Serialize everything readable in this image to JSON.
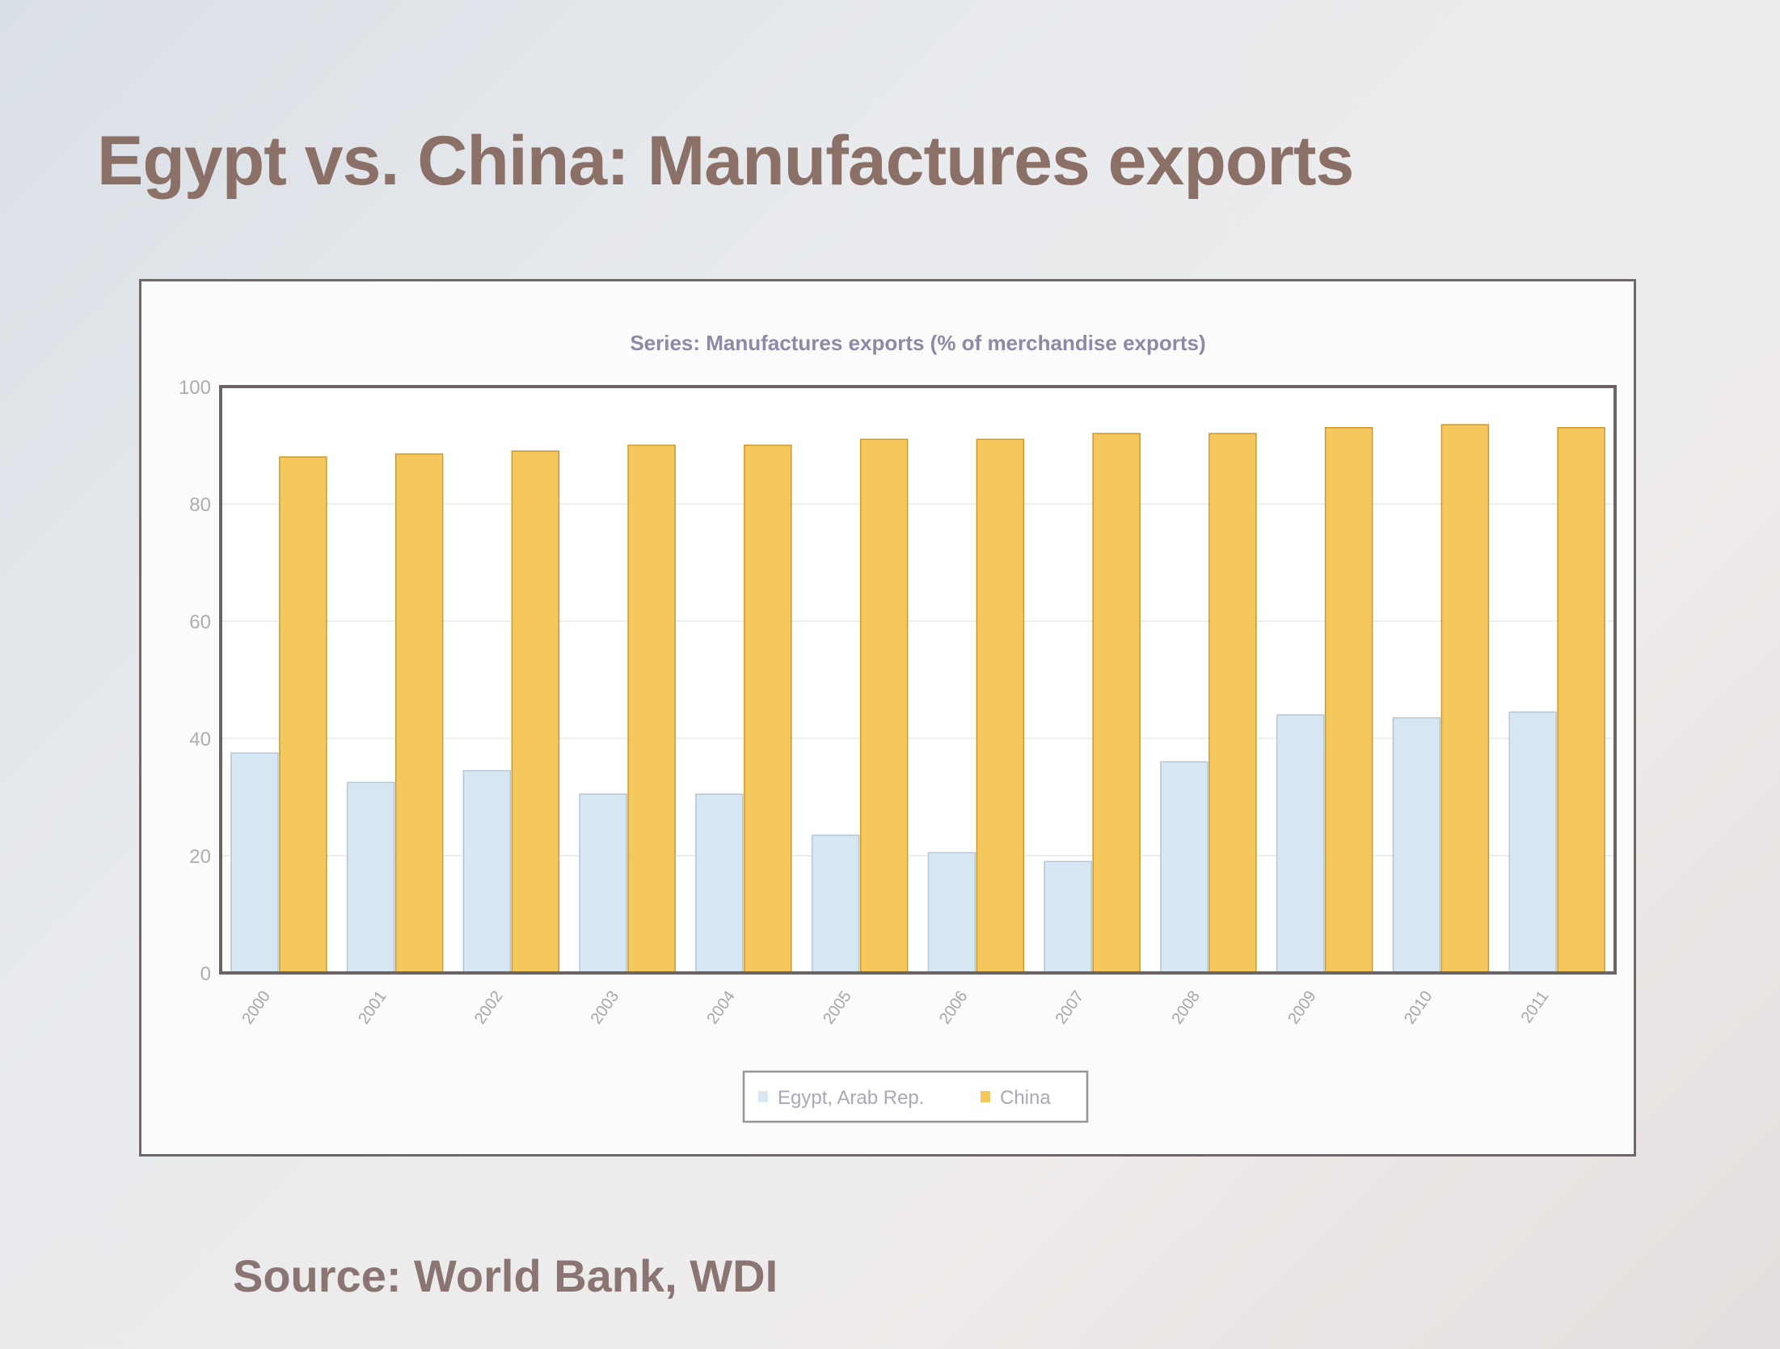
{
  "slide": {
    "title": "Egypt vs. China: Manufactures exports",
    "source": "Source: World Bank, WDI"
  },
  "chart_data": {
    "type": "bar",
    "title": "Series: Manufactures exports (% of merchandise exports)",
    "xlabel": "",
    "ylabel": "",
    "ylim": [
      0,
      100
    ],
    "yticks": [
      0,
      20,
      40,
      60,
      80,
      100
    ],
    "grid": true,
    "legend_position": "bottom",
    "categories": [
      "2000",
      "2001",
      "2002",
      "2003",
      "2004",
      "2005",
      "2006",
      "2007",
      "2008",
      "2009",
      "2010",
      "2011"
    ],
    "series": [
      {
        "name": "Egypt, Arab Rep.",
        "color": "#d6e6f2",
        "values": [
          37.5,
          32.5,
          34.5,
          30.5,
          30.5,
          23.5,
          20.5,
          19,
          36,
          44,
          43.5,
          44.5
        ]
      },
      {
        "name": "China",
        "color": "#f5c85e",
        "values": [
          88,
          88.5,
          89,
          90,
          90,
          91,
          91,
          92,
          92,
          93,
          93.5,
          93
        ]
      }
    ]
  }
}
